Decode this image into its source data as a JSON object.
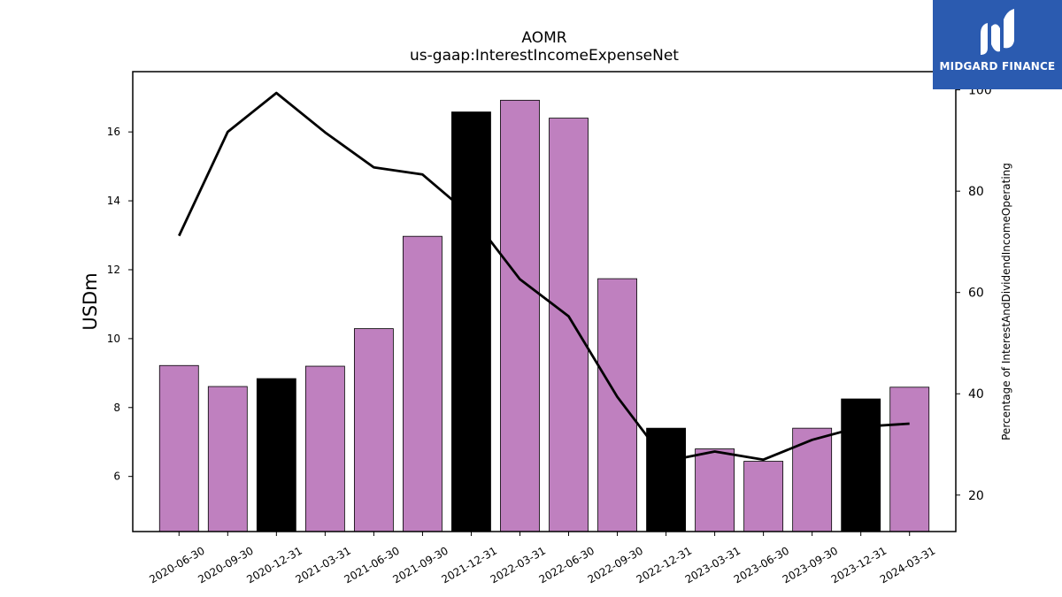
{
  "chart_data": {
    "type": "bar",
    "title": "AOMR",
    "subtitle": "us-gaap:InterestIncomeExpenseNet",
    "ylabel": "USDm",
    "y2label": "Percentage of InterestAndDividendIncomeOperating",
    "categories": [
      "2020-06-30",
      "2020-09-30",
      "2020-12-31",
      "2021-03-31",
      "2021-06-30",
      "2021-09-30",
      "2021-12-31",
      "2022-03-31",
      "2022-06-30",
      "2022-09-30",
      "2022-12-31",
      "2023-03-31",
      "2023-06-30",
      "2023-09-30",
      "2023-12-31",
      "2024-03-31"
    ],
    "series": [
      {
        "type": "bar",
        "axis": "left",
        "values": [
          9.22,
          8.61,
          8.84,
          9.2,
          10.29,
          12.97,
          16.58,
          16.92,
          16.4,
          11.74,
          7.4,
          6.8,
          6.44,
          7.4,
          8.25,
          8.59
        ],
        "colors": [
          "#bf80bf",
          "#bf80bf",
          "#000000",
          "#bf80bf",
          "#bf80bf",
          "#bf80bf",
          "#000000",
          "#bf80bf",
          "#bf80bf",
          "#bf80bf",
          "#000000",
          "#bf80bf",
          "#bf80bf",
          "#bf80bf",
          "#000000",
          "#bf80bf"
        ]
      },
      {
        "type": "line",
        "axis": "right",
        "color": "#000000",
        "values": [
          71.2,
          91.7,
          99.4,
          91.6,
          84.7,
          83.3,
          75.1,
          62.6,
          55.3,
          39.4,
          26.7,
          28.6,
          27.0,
          30.9,
          33.5,
          34.1
        ]
      }
    ],
    "yticks": [
      6,
      8,
      10,
      12,
      14,
      16
    ],
    "ylim": [
      4.4,
      17.75
    ],
    "y2ticks": [
      20,
      40,
      60,
      80,
      100
    ],
    "y2lim": [
      12.8,
      103.6
    ],
    "grid": false
  },
  "logo": {
    "text": "MIDGARD FINANCE",
    "background": "#2b5bb0"
  }
}
